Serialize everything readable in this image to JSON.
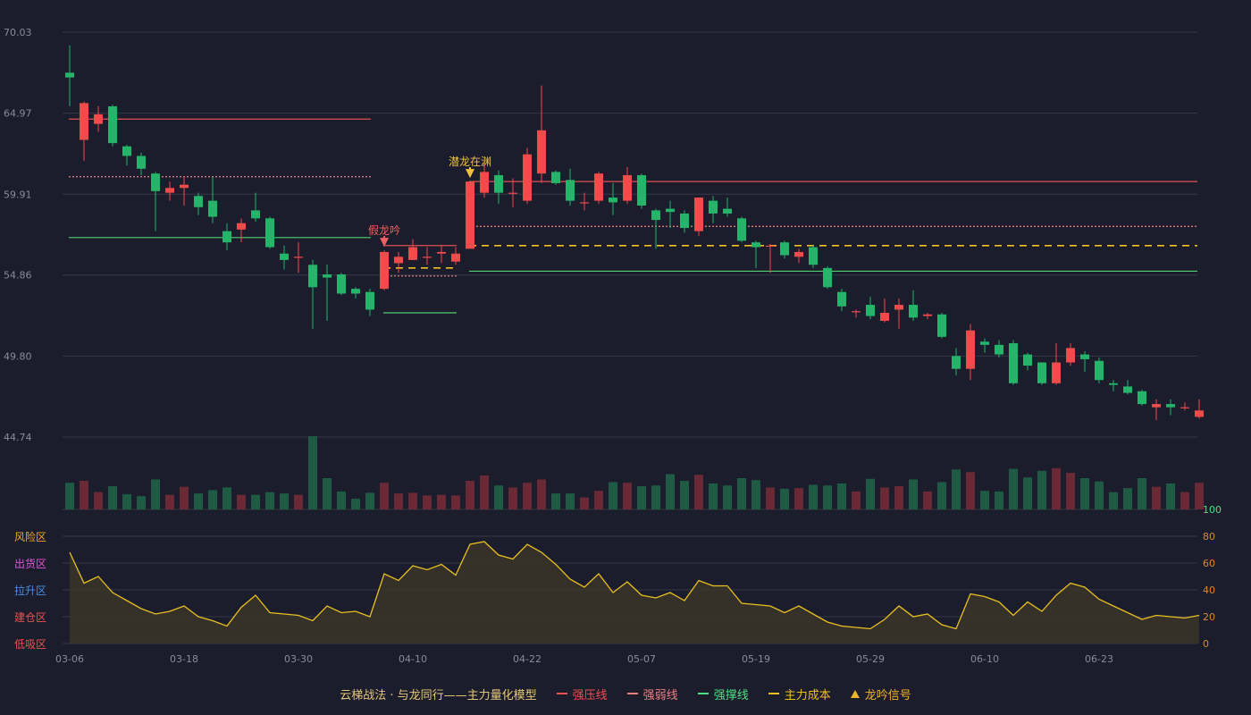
{
  "chart_data": {
    "type": "candlestick",
    "price_axis": {
      "ticks": [
        "70.03",
        "64.97",
        "59.91",
        "54.86",
        "49.80",
        "44.74"
      ],
      "ylim": [
        44.74,
        70.03
      ]
    },
    "x_tick_labels": [
      "03-06",
      "03-18",
      "03-30",
      "04-10",
      "04-22",
      "05-07",
      "05-19",
      "05-29",
      "06-10",
      "06-23"
    ],
    "x_tick_indices": [
      0,
      8,
      16,
      24,
      32,
      40,
      48,
      56,
      64,
      72
    ],
    "candles": [
      [
        67.5,
        67.2,
        69.2,
        65.4
      ],
      [
        63.3,
        65.6,
        65.7,
        62.0
      ],
      [
        64.3,
        64.9,
        65.4,
        63.8
      ],
      [
        65.4,
        63.1,
        65.5,
        62.9
      ],
      [
        62.9,
        62.3,
        63.0,
        61.7
      ],
      [
        62.3,
        61.5,
        62.5,
        61.1
      ],
      [
        61.2,
        60.1,
        61.3,
        57.6
      ],
      [
        60.0,
        60.3,
        60.7,
        59.5
      ],
      [
        60.3,
        60.5,
        61.0,
        59.2
      ],
      [
        59.8,
        59.1,
        60.0,
        58.6
      ],
      [
        59.5,
        58.5,
        61.0,
        58.1
      ],
      [
        57.6,
        56.9,
        58.1,
        56.4
      ],
      [
        57.7,
        58.1,
        58.4,
        56.9
      ],
      [
        58.9,
        58.4,
        60.0,
        58.2
      ],
      [
        58.4,
        56.6,
        58.5,
        56.5
      ],
      [
        56.2,
        55.8,
        56.7,
        55.2
      ],
      [
        56.0,
        56.0,
        56.9,
        55.0
      ],
      [
        55.5,
        54.1,
        55.8,
        51.5
      ],
      [
        54.9,
        54.7,
        55.5,
        52.0
      ],
      [
        54.9,
        53.7,
        55.0,
        53.6
      ],
      [
        54.0,
        53.7,
        54.1,
        53.4
      ],
      [
        53.8,
        52.7,
        54.0,
        52.3
      ],
      [
        54.0,
        56.3,
        56.4,
        53.9
      ],
      [
        55.6,
        56.0,
        56.3,
        55.0
      ],
      [
        55.8,
        56.6,
        57.1,
        55.8
      ],
      [
        56.0,
        56.0,
        56.6,
        55.5
      ],
      [
        56.2,
        56.3,
        56.7,
        55.6
      ],
      [
        55.7,
        56.2,
        56.6,
        55.5
      ],
      [
        56.5,
        60.7,
        60.7,
        56.5
      ],
      [
        60.0,
        61.3,
        62.1,
        59.7
      ],
      [
        61.1,
        60.0,
        61.4,
        59.3
      ],
      [
        60.0,
        60.0,
        60.9,
        59.1
      ],
      [
        59.5,
        62.4,
        62.8,
        59.3
      ],
      [
        61.2,
        63.9,
        66.7,
        60.6
      ],
      [
        61.3,
        60.6,
        61.4,
        60.5
      ],
      [
        60.8,
        59.5,
        61.5,
        59.2
      ],
      [
        59.4,
        59.4,
        60.0,
        58.9
      ],
      [
        59.5,
        61.2,
        61.3,
        59.3
      ],
      [
        59.7,
        59.4,
        60.6,
        58.6
      ],
      [
        59.5,
        61.1,
        61.6,
        59.3
      ],
      [
        61.1,
        59.2,
        61.2,
        59.0
      ],
      [
        58.9,
        58.3,
        59.0,
        56.5
      ],
      [
        59.0,
        58.8,
        59.5,
        57.8
      ],
      [
        58.7,
        57.8,
        58.9,
        57.5
      ],
      [
        57.6,
        59.7,
        59.7,
        57.3
      ],
      [
        59.5,
        58.7,
        59.8,
        58.1
      ],
      [
        59.0,
        58.7,
        59.7,
        58.5
      ],
      [
        58.4,
        57.0,
        58.5,
        56.9
      ],
      [
        56.9,
        56.6,
        57.0,
        55.3
      ],
      [
        56.7,
        56.7,
        56.8,
        55.0
      ],
      [
        56.9,
        56.1,
        57.0,
        55.9
      ],
      [
        56.0,
        56.3,
        56.5,
        55.6
      ],
      [
        56.6,
        55.5,
        56.7,
        55.3
      ],
      [
        55.3,
        54.1,
        55.4,
        54.0
      ],
      [
        53.8,
        52.9,
        54.0,
        52.6
      ],
      [
        52.6,
        52.6,
        52.7,
        52.2
      ],
      [
        53.0,
        52.3,
        53.5,
        52.1
      ],
      [
        52.0,
        52.5,
        53.4,
        51.9
      ],
      [
        52.7,
        53.0,
        53.4,
        51.5
      ],
      [
        53.0,
        52.2,
        53.9,
        52.0
      ],
      [
        52.3,
        52.4,
        52.5,
        52.1
      ],
      [
        52.4,
        51.0,
        52.5,
        50.9
      ],
      [
        49.8,
        49.0,
        50.3,
        48.6
      ],
      [
        49.0,
        51.4,
        51.8,
        48.3
      ],
      [
        50.7,
        50.5,
        50.9,
        50.0
      ],
      [
        50.5,
        49.9,
        50.8,
        49.7
      ],
      [
        50.6,
        48.1,
        50.8,
        48.0
      ],
      [
        49.9,
        49.2,
        50.0,
        48.9
      ],
      [
        49.4,
        48.1,
        49.4,
        48.0
      ],
      [
        48.1,
        49.4,
        50.6,
        48.0
      ],
      [
        49.4,
        50.3,
        50.6,
        49.2
      ],
      [
        49.9,
        49.6,
        50.1,
        48.8
      ],
      [
        49.5,
        48.3,
        49.7,
        48.1
      ],
      [
        48.1,
        48.0,
        48.3,
        47.6
      ],
      [
        47.9,
        47.5,
        48.3,
        47.4
      ],
      [
        47.6,
        46.8,
        47.7,
        46.7
      ],
      [
        46.6,
        46.8,
        47.1,
        45.8
      ],
      [
        46.8,
        46.6,
        47.1,
        46.1
      ],
      [
        46.6,
        46.6,
        46.9,
        46.4
      ],
      [
        46.0,
        46.4,
        47.1,
        45.9
      ]
    ],
    "volume": [
      40,
      43,
      26,
      35,
      23,
      20,
      45,
      22,
      34,
      24,
      29,
      33,
      22,
      22,
      26,
      24,
      22,
      110,
      47,
      27,
      16,
      25,
      40,
      24,
      25,
      21,
      22,
      21,
      43,
      51,
      36,
      33,
      40,
      45,
      24,
      24,
      18,
      28,
      41,
      40,
      35,
      36,
      53,
      43,
      52,
      39,
      36,
      47,
      44,
      33,
      31,
      32,
      37,
      36,
      39,
      27,
      46,
      33,
      35,
      45,
      27,
      41,
      60,
      56,
      28,
      27,
      61,
      48,
      58,
      62,
      55,
      47,
      42,
      26,
      32,
      47,
      34,
      39,
      26,
      40
    ],
    "indicator_axis": {
      "ticks": [
        "100",
        "80",
        "60",
        "40",
        "20",
        "0"
      ],
      "ylim": [
        0,
        100
      ]
    },
    "indicator_values": [
      68,
      45,
      50,
      38,
      32,
      26,
      22,
      24,
      28,
      20,
      17,
      13,
      27,
      36,
      23,
      22,
      21,
      17,
      28,
      23,
      24,
      20,
      52,
      47,
      58,
      55,
      59,
      51,
      74,
      76,
      66,
      63,
      74,
      68,
      59,
      48,
      42,
      52,
      38,
      46,
      36,
      34,
      38,
      32,
      47,
      43,
      43,
      30,
      29,
      28,
      23,
      28,
      22,
      16,
      13,
      12,
      11,
      18,
      28,
      20,
      22,
      14,
      11,
      37,
      35,
      31,
      21,
      31,
      24,
      36,
      45,
      42,
      33,
      28,
      23,
      18,
      21,
      20,
      19,
      21
    ],
    "zone_labels": [
      {
        "text": "风险区",
        "color": "#f5a623"
      },
      {
        "text": "出货区",
        "color": "#e055e0"
      },
      {
        "text": "拉升区",
        "color": "#4a90e2"
      },
      {
        "text": "建仓区",
        "color": "#f05050"
      },
      {
        "text": "低吸区",
        "color": "#f05050"
      }
    ],
    "level_lines": [
      {
        "kind": "strong_resistance",
        "value": 64.6,
        "from": 0,
        "to": 21
      },
      {
        "kind": "weak_resistance",
        "value": 61.0,
        "from": 0,
        "to": 21
      },
      {
        "kind": "strong_support",
        "value": 57.2,
        "from": 0,
        "to": 21
      },
      {
        "kind": "strong_resistance",
        "value": 56.7,
        "from": 22,
        "to": 27
      },
      {
        "kind": "weak_resistance",
        "value": 54.8,
        "from": 22,
        "to": 27
      },
      {
        "kind": "main_cost",
        "value": 55.3,
        "from": 22,
        "to": 27
      },
      {
        "kind": "strong_support",
        "value": 52.5,
        "from": 22,
        "to": 27
      },
      {
        "kind": "strong_resistance",
        "value": 60.7,
        "from": 28,
        "to": 80
      },
      {
        "kind": "weak_resistance",
        "value": 57.9,
        "from": 28,
        "to": 80
      },
      {
        "kind": "main_cost",
        "value": 56.7,
        "from": 28,
        "to": 80
      },
      {
        "kind": "strong_support",
        "value": 55.1,
        "from": 28,
        "to": 80
      }
    ],
    "annotations": [
      {
        "text": "假龙吟",
        "index": 22,
        "value": 56.4,
        "color": "#f06060",
        "marker": "down-arrow"
      },
      {
        "text": "潜龙在渊",
        "index": 28,
        "value": 60.7,
        "color": "#f0c040",
        "marker": "down-arrow"
      }
    ],
    "legend": {
      "title": "云梯战法 · 与龙同行——主力量化模型",
      "items": [
        {
          "label": "强压线",
          "color": "#f05050",
          "style": "solid"
        },
        {
          "label": "强弱线",
          "color": "#f08080",
          "style": "dashed"
        },
        {
          "label": "强撑线",
          "color": "#50e080",
          "style": "solid"
        },
        {
          "label": "主力成本",
          "color": "#f0c020",
          "style": "dashed"
        },
        {
          "label": "龙吟信号",
          "color": "#f0b429",
          "style": "triangle"
        }
      ]
    },
    "colors": {
      "up": "#ee4b4b",
      "down": "#26b36a",
      "up_volume": "#6a2a35",
      "down_volume": "#1f5a45",
      "strong_resistance": "#e05050",
      "weak_resistance": "#f08080",
      "strong_support": "#50d070",
      "main_cost": "#f0c020",
      "indicator_line": "#e8c020",
      "indicator_fill": "#3a3428"
    }
  }
}
